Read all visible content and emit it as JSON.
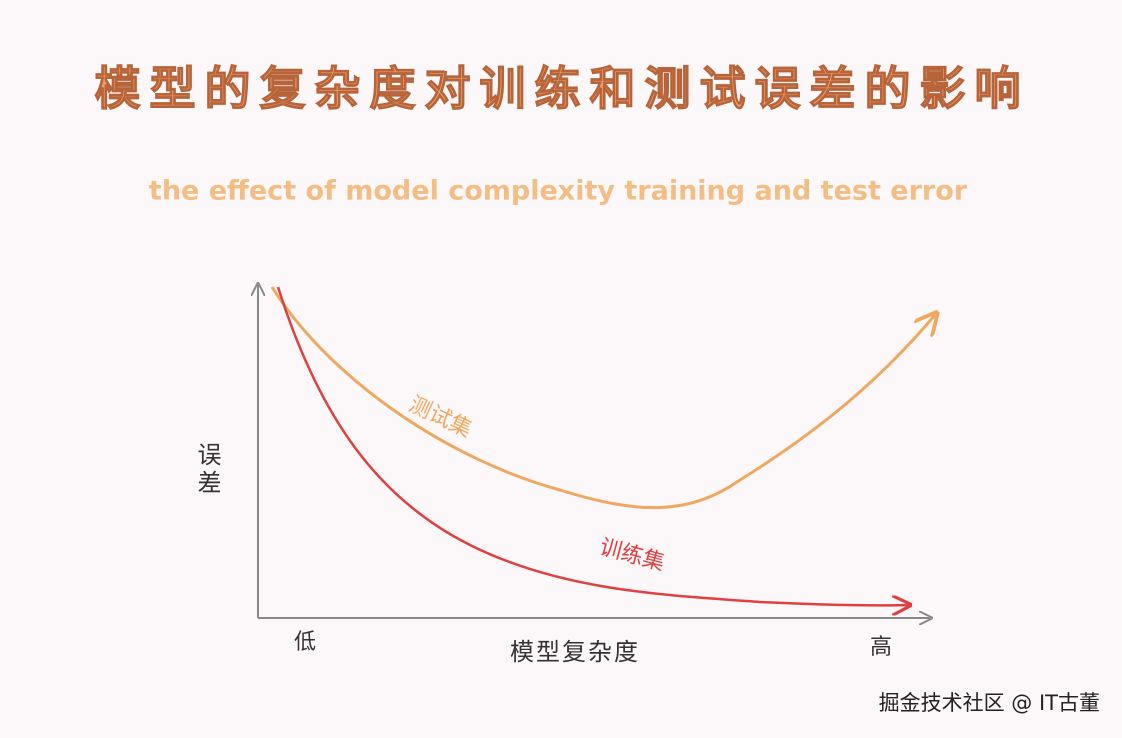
{
  "title": "模型的复杂度对训练和测试误差的影响",
  "subtitle": "the effect of model complexity training and test error",
  "axes": {
    "y_label": "误差",
    "x_label": "模型复杂度",
    "x_low": "低",
    "x_high": "高"
  },
  "curves": {
    "test": "测试集",
    "train": "训练集"
  },
  "watermark": "掘金技术社区 @ IT古董"
}
